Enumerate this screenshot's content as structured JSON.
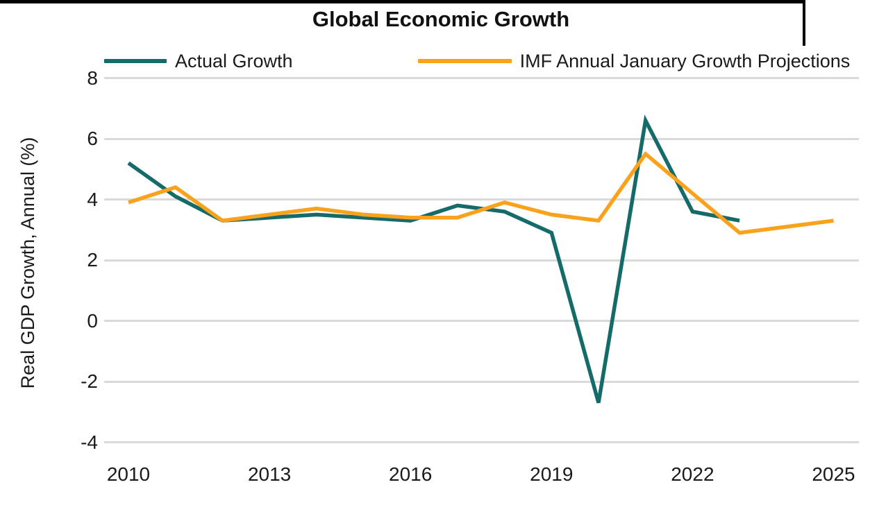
{
  "title": "Global Economic Growth",
  "legend": {
    "items": [
      {
        "label": "Actual Growth",
        "color": "#156a6a"
      },
      {
        "label": "IMF Annual January Growth Projections",
        "color": "#faa21b"
      }
    ]
  },
  "y_axis": {
    "label": "Real GDP Growth, Annual (%)",
    "ticks": [
      8,
      6,
      4,
      2,
      0,
      -2,
      -4
    ]
  },
  "x_axis": {
    "ticks": [
      2010,
      2013,
      2016,
      2019,
      2022,
      2025
    ]
  },
  "chart_data": {
    "type": "line",
    "title": "Global Economic Growth",
    "xlabel": "",
    "ylabel": "Real GDP Growth, Annual (%)",
    "ylim": [
      -4,
      8
    ],
    "xlim": [
      2010,
      2025
    ],
    "grid": "horizontal",
    "legend_position": "top",
    "series": [
      {
        "name": "Actual Growth",
        "color": "#156a6a",
        "x": [
          2010,
          2011,
          2012,
          2013,
          2014,
          2015,
          2016,
          2017,
          2018,
          2019,
          2020,
          2021,
          2022,
          2023
        ],
        "values": [
          5.2,
          4.1,
          3.3,
          3.4,
          3.5,
          3.4,
          3.3,
          3.8,
          3.6,
          2.9,
          -2.7,
          6.6,
          3.6,
          3.3
        ]
      },
      {
        "name": "IMF Annual January Growth Projections",
        "color": "#faa21b",
        "x": [
          2010,
          2011,
          2012,
          2013,
          2014,
          2015,
          2016,
          2017,
          2018,
          2019,
          2020,
          2021,
          2022,
          2023,
          2024,
          2025
        ],
        "values": [
          3.9,
          4.4,
          3.3,
          3.5,
          3.7,
          3.5,
          3.4,
          3.4,
          3.9,
          3.5,
          3.3,
          5.5,
          4.2,
          2.9,
          3.1,
          3.3
        ]
      }
    ]
  }
}
